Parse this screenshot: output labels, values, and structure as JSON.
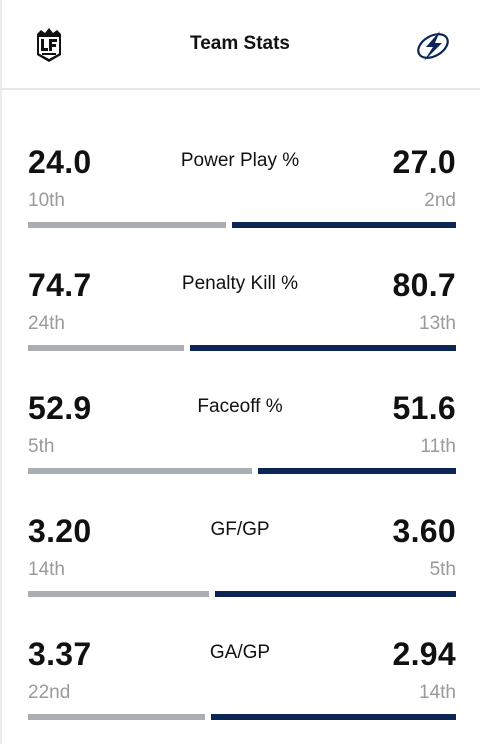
{
  "header": {
    "title": "Team Stats",
    "home_logo": "la-kings-logo",
    "away_logo": "tampa-bay-lightning-logo"
  },
  "colors": {
    "home_bar": "#a8aeb1",
    "away_bar": "#0b2555"
  },
  "stats": [
    {
      "label": "Power Play %",
      "home_value": "24.0",
      "home_rank": "10th",
      "away_value": "27.0",
      "away_rank": "2nd",
      "home_share": 0.47
    },
    {
      "label": "Penalty Kill %",
      "home_value": "74.7",
      "home_rank": "24th",
      "away_value": "80.7",
      "away_rank": "13th",
      "home_share": 0.37
    },
    {
      "label": "Faceoff %",
      "home_value": "52.9",
      "home_rank": "5th",
      "away_value": "51.6",
      "away_rank": "11th",
      "home_share": 0.53
    },
    {
      "label": "GF/GP",
      "home_value": "3.20",
      "home_rank": "14th",
      "away_value": "3.60",
      "away_rank": "5th",
      "home_share": 0.43
    },
    {
      "label": "GA/GP",
      "home_value": "3.37",
      "home_rank": "22nd",
      "away_value": "2.94",
      "away_rank": "14th",
      "home_share": 0.42
    }
  ]
}
